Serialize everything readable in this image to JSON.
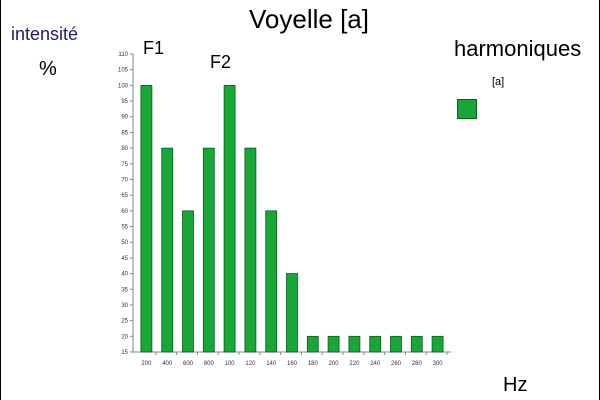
{
  "chart_data": {
    "type": "bar",
    "title": "Voyelle [a]",
    "ylabel": "intensité",
    "yunit": "%",
    "xlabel": "Hz",
    "legend_title": "harmoniques",
    "annotations": [
      "F1",
      "F2"
    ],
    "categories": [
      "200",
      "400",
      "600",
      "800",
      "100",
      "120",
      "140",
      "160",
      "180",
      "200",
      "220",
      "240",
      "260",
      "280",
      "300"
    ],
    "series": [
      {
        "name": "[a]",
        "values": [
          100,
          80,
          60,
          80,
          100,
          80,
          60,
          40,
          20,
          20,
          20,
          20,
          20,
          20,
          20
        ],
        "color": "#17a637"
      }
    ],
    "ylim": [
      15,
      110
    ],
    "yticks": [
      15,
      20,
      25,
      30,
      35,
      40,
      45,
      50,
      55,
      60,
      65,
      70,
      75,
      80,
      85,
      90,
      95,
      100,
      105,
      110
    ],
    "grid": false,
    "legend": "right"
  },
  "colors": {
    "bar_fill": "#17a637",
    "bar_stroke": "#0b5e1a",
    "axis": "#888888"
  }
}
